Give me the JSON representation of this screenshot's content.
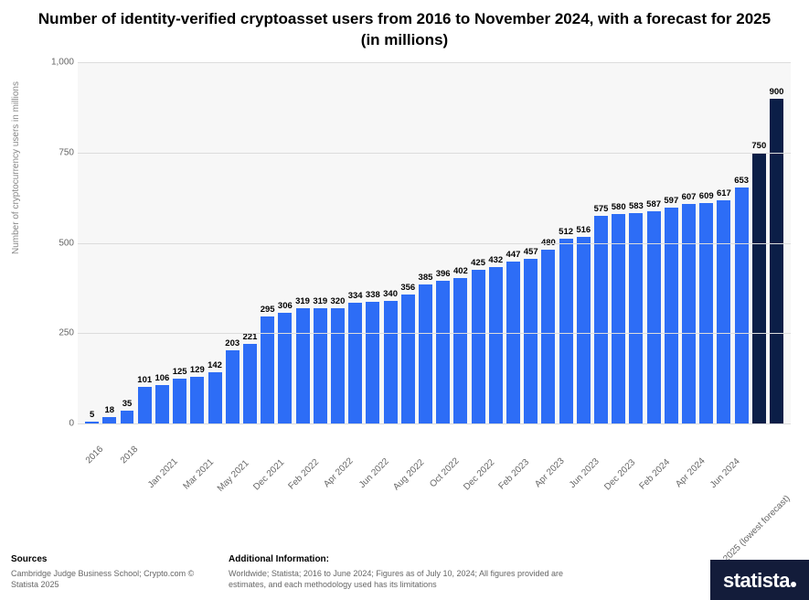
{
  "title": "Number of identity-verified cryptoasset users from 2016 to November 2024, with a forecast for 2025 (in millions)",
  "title_fontsize": 17,
  "chart": {
    "type": "bar",
    "background_color": "#f7f7f7",
    "grid_color": "#dcdcdc",
    "primary_bar_color": "#2d6df6",
    "forecast_bar_color": "#0b1e47",
    "value_label_fontsize": 9.5,
    "value_label_color": "#000000",
    "x_label_fontsize": 10,
    "x_label_color": "#666666",
    "x_label_rotation": -45,
    "ylabel": "Number of cryptocurrency users in millions",
    "ylabel_fontsize": 10,
    "ylabel_color": "#888888",
    "ylim": [
      0,
      1000
    ],
    "yticks": [
      0,
      250,
      500,
      750,
      1000
    ],
    "bar_width_ratio": 0.78,
    "x_label_step": 2,
    "bars": [
      {
        "value": 5,
        "label": "2016",
        "color": "#2d6df6"
      },
      {
        "value": 18,
        "label": "",
        "color": "#2d6df6"
      },
      {
        "value": 35,
        "label": "2018",
        "color": "#2d6df6"
      },
      {
        "value": 101,
        "label": "",
        "color": "#2d6df6"
      },
      {
        "value": 106,
        "label": "Jan 2021",
        "color": "#2d6df6"
      },
      {
        "value": 125,
        "label": "",
        "color": "#2d6df6"
      },
      {
        "value": 129,
        "label": "Mar 2021",
        "color": "#2d6df6"
      },
      {
        "value": 142,
        "label": "",
        "color": "#2d6df6"
      },
      {
        "value": 203,
        "label": "May 2021",
        "color": "#2d6df6"
      },
      {
        "value": 221,
        "label": "",
        "color": "#2d6df6"
      },
      {
        "value": 295,
        "label": "Dec 2021",
        "color": "#2d6df6"
      },
      {
        "value": 306,
        "label": "",
        "color": "#2d6df6"
      },
      {
        "value": 319,
        "label": "Feb 2022",
        "color": "#2d6df6"
      },
      {
        "value": 319,
        "label": "",
        "color": "#2d6df6"
      },
      {
        "value": 320,
        "label": "Apr 2022",
        "color": "#2d6df6"
      },
      {
        "value": 334,
        "label": "",
        "color": "#2d6df6"
      },
      {
        "value": 338,
        "label": "Jun 2022",
        "color": "#2d6df6"
      },
      {
        "value": 340,
        "label": "",
        "color": "#2d6df6"
      },
      {
        "value": 356,
        "label": "Aug 2022",
        "color": "#2d6df6"
      },
      {
        "value": 385,
        "label": "",
        "color": "#2d6df6"
      },
      {
        "value": 396,
        "label": "Oct 2022",
        "color": "#2d6df6"
      },
      {
        "value": 402,
        "label": "",
        "color": "#2d6df6"
      },
      {
        "value": 425,
        "label": "Dec 2022",
        "color": "#2d6df6"
      },
      {
        "value": 432,
        "label": "",
        "color": "#2d6df6"
      },
      {
        "value": 447,
        "label": "Feb 2023",
        "color": "#2d6df6"
      },
      {
        "value": 457,
        "label": "",
        "color": "#2d6df6"
      },
      {
        "value": 480,
        "label": "Apr 2023",
        "color": "#2d6df6"
      },
      {
        "value": 512,
        "label": "",
        "color": "#2d6df6"
      },
      {
        "value": 516,
        "label": "Jun 2023",
        "color": "#2d6df6"
      },
      {
        "value": 575,
        "label": "",
        "color": "#2d6df6"
      },
      {
        "value": 580,
        "label": "Dec 2023",
        "color": "#2d6df6"
      },
      {
        "value": 583,
        "label": "",
        "color": "#2d6df6"
      },
      {
        "value": 587,
        "label": "Feb 2024",
        "color": "#2d6df6"
      },
      {
        "value": 597,
        "label": "",
        "color": "#2d6df6"
      },
      {
        "value": 607,
        "label": "Apr 2024",
        "color": "#2d6df6"
      },
      {
        "value": 609,
        "label": "",
        "color": "#2d6df6"
      },
      {
        "value": 617,
        "label": "Jun 2024",
        "color": "#2d6df6"
      },
      {
        "value": 653,
        "label": "",
        "color": "#2d6df6"
      },
      {
        "value": 750,
        "label": "2025 (lowest forecast)",
        "color": "#0b1e47"
      },
      {
        "value": 900,
        "label": "",
        "color": "#0b1e47"
      }
    ]
  },
  "footer": {
    "sources_heading": "Sources",
    "sources_text": "Cambridge Judge Business School; Crypto.com © Statista 2025",
    "info_heading": "Additional Information:",
    "info_text": "Worldwide; Statista; 2016 to June 2024; Figures as of July 10, 2024; All figures provided are estimates, and each methodology used has its limitations"
  },
  "logo": {
    "text": "statista",
    "background": "#131c3a",
    "color": "#ffffff"
  }
}
